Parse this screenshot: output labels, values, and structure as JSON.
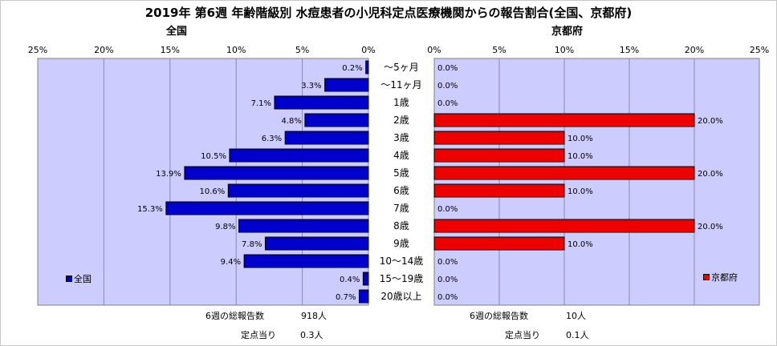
{
  "title": "2019年 第6週 年齢階級別 水痘患者の小児科定点医療機関からの報告割合(全国、京都府)",
  "chart_data": [
    {
      "type": "bar",
      "orientation": "horizontal",
      "direction": "right-to-left",
      "panel_label": "全国",
      "xlim": [
        0,
        25
      ],
      "x_ticks": [
        "25%",
        "20%",
        "15%",
        "10%",
        "5%",
        "0%"
      ],
      "categories": [
        "～5ヶ月",
        "～11ヶ月",
        "1歳",
        "2歳",
        "3歳",
        "4歳",
        "5歳",
        "6歳",
        "7歳",
        "8歳",
        "9歳",
        "10～14歳",
        "15～19歳",
        "20歳以上"
      ],
      "series": [
        {
          "name": "全国",
          "color": "#0000cc",
          "values": [
            0.2,
            3.3,
            7.1,
            4.8,
            6.3,
            10.5,
            13.9,
            10.6,
            15.3,
            9.8,
            7.8,
            9.4,
            0.4,
            0.7
          ],
          "labels": [
            "0.2%",
            "3.3%",
            "7.1%",
            "4.8%",
            "6.3%",
            "10.5%",
            "13.9%",
            "10.6%",
            "15.3%",
            "9.8%",
            "7.8%",
            "9.4%",
            "0.4%",
            "0.7%"
          ]
        }
      ],
      "grid": true,
      "plot_background": "#ccccff",
      "legend_position": "bottom-left"
    },
    {
      "type": "bar",
      "orientation": "horizontal",
      "direction": "left-to-right",
      "panel_label": "京都府",
      "xlim": [
        0,
        25
      ],
      "x_ticks": [
        "0%",
        "5%",
        "10%",
        "15%",
        "20%",
        "25%"
      ],
      "categories": [
        "～5ヶ月",
        "～11ヶ月",
        "1歳",
        "2歳",
        "3歳",
        "4歳",
        "5歳",
        "6歳",
        "7歳",
        "8歳",
        "9歳",
        "10～14歳",
        "15～19歳",
        "20歳以上"
      ],
      "series": [
        {
          "name": "京都府",
          "color": "#ee0000",
          "values": [
            0,
            0,
            0,
            20,
            10,
            10,
            20,
            10,
            0,
            20,
            10,
            0,
            0,
            0
          ],
          "labels": [
            "0.0%",
            "0.0%",
            "0.0%",
            "20.0%",
            "10.0%",
            "10.0%",
            "20.0%",
            "10.0%",
            "0.0%",
            "20.0%",
            "10.0%",
            "0.0%",
            "0.0%",
            "0.0%"
          ]
        }
      ],
      "grid": true,
      "plot_background": "#ccccff",
      "legend_position": "bottom-right"
    }
  ],
  "footer": {
    "left": {
      "total_label": "6週の総報告数",
      "total_value": "918人",
      "per_label": "定点当り",
      "per_value": "0.3人"
    },
    "right": {
      "total_label": "6週の総報告数",
      "total_value": "10人",
      "per_label": "定点当り",
      "per_value": "0.1人"
    }
  }
}
